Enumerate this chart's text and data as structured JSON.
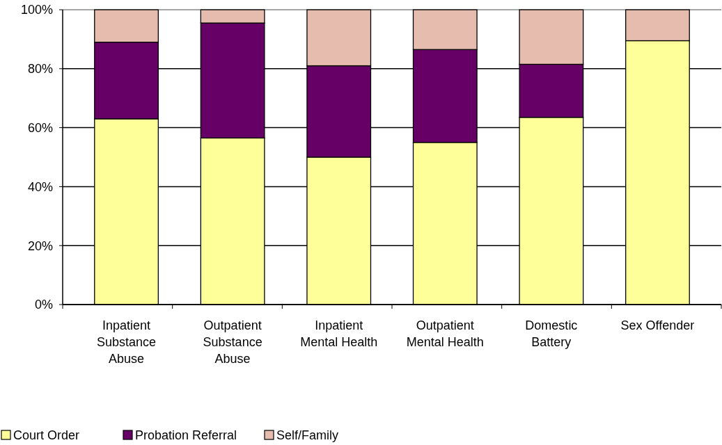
{
  "chart_data": {
    "type": "bar",
    "stacked": true,
    "categories": [
      "Inpatient Substance Abuse",
      "Outpatient Substance Abuse",
      "Inpatient Mental Health",
      "Outpatient Mental Health",
      "Domestic Battery",
      "Sex Offender"
    ],
    "series": [
      {
        "name": "Court Order",
        "color": "#ffff99",
        "values": [
          63,
          56.5,
          50,
          55,
          63.5,
          89.5
        ]
      },
      {
        "name": "Probation Referral",
        "color": "#660066",
        "values": [
          26,
          39,
          31,
          31.5,
          18,
          0
        ]
      },
      {
        "name": "Self/Family",
        "color": "#e6bcae",
        "values": [
          11,
          4.5,
          19,
          13.5,
          18.5,
          10.5
        ]
      }
    ],
    "ylim": [
      0,
      100
    ],
    "yticks": [
      {
        "value": 0,
        "label": "0%"
      },
      {
        "value": 20,
        "label": "20%"
      },
      {
        "value": 40,
        "label": "40%"
      },
      {
        "value": 60,
        "label": "60%"
      },
      {
        "value": 80,
        "label": "80%"
      },
      {
        "value": 100,
        "label": "100%"
      }
    ],
    "grid": "y",
    "legend": "bottom left"
  }
}
